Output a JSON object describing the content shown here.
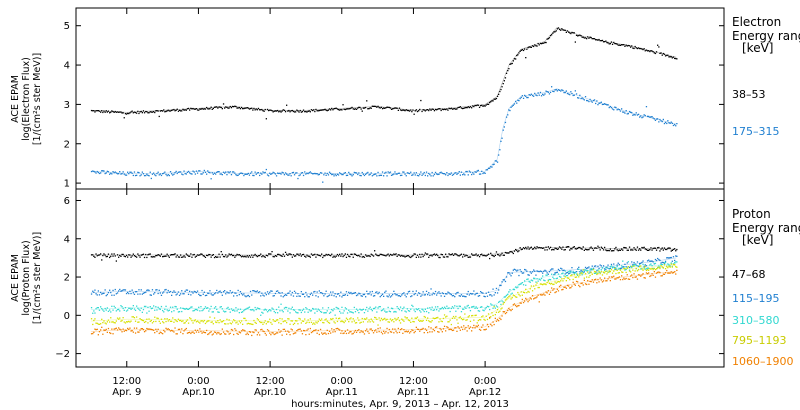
{
  "chart_data": [
    {
      "type": "scatter",
      "panel": "electron",
      "ylabel_lines": [
        "ACE EPAM",
        "log(Electron Flux)",
        "[1/(cm²s ster MeV)]"
      ],
      "ylim": [
        0.85,
        5.45
      ],
      "yticks": [
        1,
        2,
        3,
        4,
        5
      ],
      "legend_title_lines": [
        "Electron",
        "Energy range"
      ],
      "legend_unit": "[keV]",
      "series": [
        {
          "name": "38–53",
          "color": "#000000",
          "points": [
            [
              -6,
              2.85
            ],
            [
              0,
              2.8
            ],
            [
              6,
              2.85
            ],
            [
              12,
              2.9
            ],
            [
              18,
              2.95
            ],
            [
              24,
              2.85
            ],
            [
              30,
              2.85
            ],
            [
              36,
              2.9
            ],
            [
              42,
              2.95
            ],
            [
              48,
              2.85
            ],
            [
              54,
              2.9
            ],
            [
              60,
              3.0
            ],
            [
              62,
              3.2
            ],
            [
              64,
              4.0
            ],
            [
              66,
              4.4
            ],
            [
              70,
              4.6
            ],
            [
              72,
              4.95
            ],
            [
              76,
              4.75
            ],
            [
              80,
              4.6
            ],
            [
              84,
              4.5
            ],
            [
              88,
              4.35
            ],
            [
              92,
              4.2
            ]
          ]
        },
        {
          "name": "175–315",
          "color": "#1f7fd0",
          "points": [
            [
              -6,
              1.3
            ],
            [
              0,
              1.25
            ],
            [
              6,
              1.25
            ],
            [
              12,
              1.3
            ],
            [
              18,
              1.25
            ],
            [
              24,
              1.25
            ],
            [
              30,
              1.25
            ],
            [
              36,
              1.25
            ],
            [
              42,
              1.25
            ],
            [
              48,
              1.25
            ],
            [
              54,
              1.25
            ],
            [
              60,
              1.3
            ],
            [
              62,
              1.6
            ],
            [
              63,
              2.4
            ],
            [
              64,
              2.9
            ],
            [
              66,
              3.2
            ],
            [
              70,
              3.3
            ],
            [
              72,
              3.4
            ],
            [
              76,
              3.2
            ],
            [
              80,
              3.0
            ],
            [
              84,
              2.8
            ],
            [
              88,
              2.65
            ],
            [
              92,
              2.5
            ]
          ]
        }
      ]
    },
    {
      "type": "scatter",
      "panel": "proton",
      "ylabel_lines": [
        "ACE EPAM",
        "log(Proton Flux)",
        "[1/(cm²s ster MeV)]"
      ],
      "ylim": [
        -2.7,
        6.6
      ],
      "yticks": [
        -2,
        0,
        2,
        4,
        6
      ],
      "legend_title_lines": [
        "Proton",
        "Energy range"
      ],
      "legend_unit": "[keV]",
      "series": [
        {
          "name": "47–68",
          "color": "#000000",
          "points": [
            [
              -6,
              3.15
            ],
            [
              0,
              3.15
            ],
            [
              12,
              3.15
            ],
            [
              24,
              3.15
            ],
            [
              36,
              3.15
            ],
            [
              48,
              3.15
            ],
            [
              60,
              3.15
            ],
            [
              64,
              3.3
            ],
            [
              66,
              3.5
            ],
            [
              72,
              3.55
            ],
            [
              80,
              3.5
            ],
            [
              88,
              3.5
            ],
            [
              92,
              3.45
            ]
          ]
        },
        {
          "name": "115–195",
          "color": "#1f7fd0",
          "points": [
            [
              -6,
              1.2
            ],
            [
              0,
              1.25
            ],
            [
              12,
              1.2
            ],
            [
              24,
              1.15
            ],
            [
              36,
              1.15
            ],
            [
              48,
              1.15
            ],
            [
              60,
              1.15
            ],
            [
              62,
              1.3
            ],
            [
              64,
              2.25
            ],
            [
              70,
              2.3
            ],
            [
              76,
              2.4
            ],
            [
              82,
              2.6
            ],
            [
              88,
              2.8
            ],
            [
              92,
              3.0
            ]
          ]
        },
        {
          "name": "310–580",
          "color": "#30d8d0",
          "points": [
            [
              -6,
              0.3
            ],
            [
              0,
              0.4
            ],
            [
              12,
              0.35
            ],
            [
              24,
              0.3
            ],
            [
              36,
              0.3
            ],
            [
              48,
              0.35
            ],
            [
              60,
              0.4
            ],
            [
              62,
              0.6
            ],
            [
              64,
              1.2
            ],
            [
              66,
              1.7
            ],
            [
              70,
              2.0
            ],
            [
              76,
              2.3
            ],
            [
              82,
              2.5
            ],
            [
              88,
              2.6
            ],
            [
              92,
              2.7
            ]
          ]
        },
        {
          "name": "795–1193",
          "color": "#d6e000",
          "points": [
            [
              -6,
              -0.3
            ],
            [
              0,
              -0.2
            ],
            [
              12,
              -0.25
            ],
            [
              24,
              -0.3
            ],
            [
              36,
              -0.25
            ],
            [
              48,
              -0.2
            ],
            [
              60,
              -0.1
            ],
            [
              62,
              0.3
            ],
            [
              64,
              0.9
            ],
            [
              68,
              1.5
            ],
            [
              74,
              2.0
            ],
            [
              80,
              2.3
            ],
            [
              86,
              2.5
            ],
            [
              92,
              2.6
            ]
          ]
        },
        {
          "name": "1060–1900",
          "color": "#f08000",
          "points": [
            [
              -6,
              -0.85
            ],
            [
              0,
              -0.75
            ],
            [
              12,
              -0.8
            ],
            [
              24,
              -0.85
            ],
            [
              36,
              -0.8
            ],
            [
              48,
              -0.75
            ],
            [
              60,
              -0.6
            ],
            [
              62,
              -0.2
            ],
            [
              64,
              0.4
            ],
            [
              68,
              1.0
            ],
            [
              74,
              1.6
            ],
            [
              80,
              1.9
            ],
            [
              86,
              2.1
            ],
            [
              92,
              2.3
            ]
          ]
        }
      ]
    }
  ],
  "x_axis": {
    "unit": "hours",
    "range": [
      -8.5,
      100
    ],
    "ticks": [
      {
        "x": 0,
        "time": "12:00",
        "date": "Apr. 9"
      },
      {
        "x": 12,
        "time": "0:00",
        "date": "Apr.10"
      },
      {
        "x": 24,
        "time": "12:00",
        "date": "Apr.10"
      },
      {
        "x": 36,
        "time": "0:00",
        "date": "Apr.11"
      },
      {
        "x": 48,
        "time": "12:00",
        "date": "Apr.11"
      },
      {
        "x": 60,
        "time": "0:00",
        "date": "Apr.12"
      }
    ],
    "label": "hours:minutes, Apr. 9, 2013 – Apr. 12, 2013"
  }
}
